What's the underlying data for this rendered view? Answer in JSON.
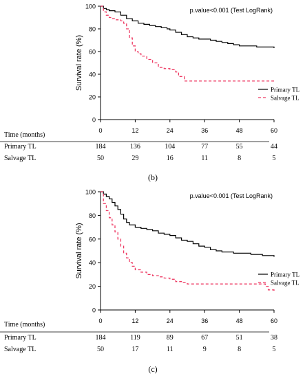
{
  "chart_data": [
    {
      "type": "line",
      "panel_label": "(b)",
      "annotation": "p.value<0.001 (Test LogRank)",
      "ylabel": "Survival rate (%)",
      "xlim": [
        0,
        60
      ],
      "ylim": [
        0,
        100
      ],
      "x_ticks": [
        0,
        12,
        24,
        36,
        48,
        60
      ],
      "y_ticks": [
        0,
        20,
        40,
        60,
        80,
        100
      ],
      "legend_position": "right",
      "series": [
        {
          "name": "Primary TL",
          "color": "#000000",
          "style": "solid",
          "points": [
            [
              0,
              100
            ],
            [
              1,
              98
            ],
            [
              2,
              97
            ],
            [
              3,
              96
            ],
            [
              5,
              95
            ],
            [
              7,
              92
            ],
            [
              9,
              89
            ],
            [
              11,
              87
            ],
            [
              13,
              85
            ],
            [
              15,
              84
            ],
            [
              17,
              83
            ],
            [
              19,
              82
            ],
            [
              21,
              81
            ],
            [
              23,
              80
            ],
            [
              24,
              79
            ],
            [
              26,
              77
            ],
            [
              28,
              75
            ],
            [
              30,
              73
            ],
            [
              32,
              72
            ],
            [
              34,
              71
            ],
            [
              36,
              71
            ],
            [
              38,
              70
            ],
            [
              40,
              69
            ],
            [
              42,
              68
            ],
            [
              44,
              67
            ],
            [
              46,
              66
            ],
            [
              48,
              65
            ],
            [
              50,
              65
            ],
            [
              52,
              65
            ],
            [
              54,
              64
            ],
            [
              56,
              64
            ],
            [
              58,
              64
            ],
            [
              60,
              63
            ]
          ]
        },
        {
          "name": "Salvage TL",
          "color": "#ee3a63",
          "style": "dashed",
          "points": [
            [
              0,
              100
            ],
            [
              1,
              95
            ],
            [
              2,
              92
            ],
            [
              3,
              90
            ],
            [
              4,
              89
            ],
            [
              5,
              88
            ],
            [
              7,
              87
            ],
            [
              8,
              85
            ],
            [
              9,
              80
            ],
            [
              10,
              72
            ],
            [
              11,
              65
            ],
            [
              12,
              60
            ],
            [
              13,
              58
            ],
            [
              14,
              56
            ],
            [
              16,
              53
            ],
            [
              18,
              50
            ],
            [
              20,
              46
            ],
            [
              22,
              45
            ],
            [
              24,
              44
            ],
            [
              26,
              42
            ],
            [
              27,
              38
            ],
            [
              29,
              34
            ],
            [
              31,
              34
            ],
            [
              36,
              34
            ],
            [
              48,
              34
            ],
            [
              60,
              34
            ]
          ]
        }
      ],
      "risk_table": {
        "header": "Time (months)",
        "rows": [
          {
            "label": "Primary TL",
            "values": [
              "184",
              "136",
              "104",
              "77",
              "55",
              "44"
            ]
          },
          {
            "label": "Salvage TL",
            "values": [
              "50",
              "29",
              "16",
              "11",
              "8",
              "5"
            ]
          }
        ]
      }
    },
    {
      "type": "line",
      "panel_label": "(c)",
      "annotation": "p.value<0.001 (Test LogRank)",
      "ylabel": "Survival rate (%)",
      "xlim": [
        0,
        60
      ],
      "ylim": [
        0,
        100
      ],
      "x_ticks": [
        0,
        12,
        24,
        36,
        48,
        60
      ],
      "y_ticks": [
        0,
        20,
        40,
        60,
        80,
        100
      ],
      "legend_position": "right",
      "series": [
        {
          "name": "Primary TL",
          "color": "#000000",
          "style": "solid",
          "points": [
            [
              0,
              100
            ],
            [
              1,
              98
            ],
            [
              2,
              96
            ],
            [
              3,
              94
            ],
            [
              4,
              91
            ],
            [
              5,
              88
            ],
            [
              6,
              85
            ],
            [
              7,
              81
            ],
            [
              8,
              77
            ],
            [
              9,
              74
            ],
            [
              10,
              72
            ],
            [
              12,
              70
            ],
            [
              14,
              69
            ],
            [
              16,
              68
            ],
            [
              18,
              67
            ],
            [
              20,
              65
            ],
            [
              22,
              64
            ],
            [
              24,
              63
            ],
            [
              26,
              61
            ],
            [
              28,
              59
            ],
            [
              30,
              58
            ],
            [
              32,
              56
            ],
            [
              34,
              54
            ],
            [
              36,
              53
            ],
            [
              38,
              51
            ],
            [
              40,
              50
            ],
            [
              42,
              49
            ],
            [
              44,
              49
            ],
            [
              46,
              48
            ],
            [
              48,
              48
            ],
            [
              50,
              48
            ],
            [
              52,
              47
            ],
            [
              54,
              47
            ],
            [
              56,
              46
            ],
            [
              58,
              46
            ],
            [
              60,
              45
            ]
          ]
        },
        {
          "name": "Salvage TL",
          "color": "#ee3a63",
          "style": "dashed",
          "points": [
            [
              0,
              100
            ],
            [
              1,
              90
            ],
            [
              2,
              84
            ],
            [
              3,
              78
            ],
            [
              4,
              72
            ],
            [
              5,
              66
            ],
            [
              6,
              60
            ],
            [
              7,
              54
            ],
            [
              8,
              48
            ],
            [
              9,
              44
            ],
            [
              10,
              40
            ],
            [
              11,
              37
            ],
            [
              12,
              34
            ],
            [
              14,
              32
            ],
            [
              16,
              30
            ],
            [
              18,
              29
            ],
            [
              20,
              28
            ],
            [
              22,
              27
            ],
            [
              24,
              26
            ],
            [
              26,
              24
            ],
            [
              28,
              23
            ],
            [
              30,
              22
            ],
            [
              36,
              22
            ],
            [
              48,
              22
            ],
            [
              56,
              22
            ],
            [
              57,
              20
            ],
            [
              58,
              17
            ],
            [
              60,
              16
            ]
          ]
        }
      ],
      "risk_table": {
        "header": "Time (months)",
        "rows": [
          {
            "label": "Primary TL",
            "values": [
              "184",
              "119",
              "89",
              "67",
              "51",
              "38"
            ]
          },
          {
            "label": "Salvage TL",
            "values": [
              "50",
              "17",
              "11",
              "9",
              "8",
              "5"
            ]
          }
        ]
      }
    }
  ]
}
